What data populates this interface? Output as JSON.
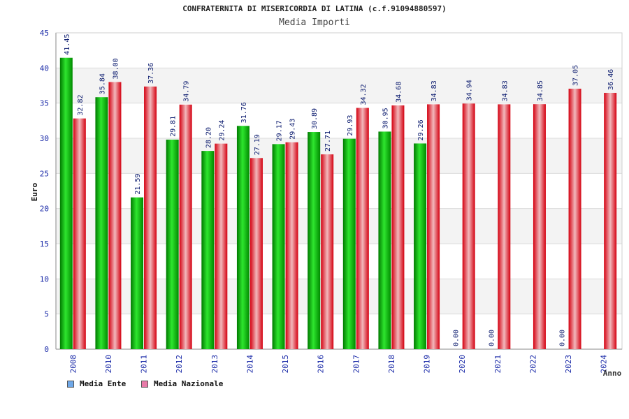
{
  "chart_data": {
    "type": "bar",
    "title": "CONFRATERNITA DI MISERICORDIA DI LATINA (c.f.91094880597)",
    "subtitle": "Media Importi",
    "xlabel": "Anno",
    "ylabel": "Euro",
    "ylim": [
      0,
      45
    ],
    "yticks": [
      0,
      5,
      10,
      15,
      20,
      25,
      30,
      35,
      40,
      45
    ],
    "categories": [
      "2008",
      "2010",
      "2011",
      "2012",
      "2013",
      "2014",
      "2015",
      "2016",
      "2017",
      "2018",
      "2019",
      "2020",
      "2021",
      "2022",
      "2023",
      "2024"
    ],
    "series": [
      {
        "name": "Media Ente",
        "color": "#00b000",
        "values": [
          41.45,
          35.84,
          21.59,
          29.81,
          28.2,
          31.76,
          29.17,
          30.89,
          29.93,
          30.95,
          29.26,
          0.0,
          0.0,
          null,
          0.0,
          null
        ],
        "labels": [
          "41.45",
          "35.84",
          "21.59",
          "29.81",
          "28.20",
          "31.76",
          "29.17",
          "30.89",
          "29.93",
          "30.95",
          "29.26",
          "0.00",
          "0.00",
          null,
          "0.00",
          null
        ]
      },
      {
        "name": "Media Nazionale",
        "color": "#e0141e",
        "values": [
          32.82,
          38.0,
          37.36,
          34.79,
          29.24,
          27.19,
          29.43,
          27.71,
          34.32,
          34.68,
          34.83,
          34.94,
          34.83,
          34.85,
          37.05,
          36.46
        ],
        "labels": [
          "32.82",
          "38.00",
          "37.36",
          "34.79",
          "29.24",
          "27.19",
          "29.43",
          "27.71",
          "34.32",
          "34.68",
          "34.83",
          "34.94",
          "34.83",
          "34.85",
          "37.05",
          "36.46"
        ]
      }
    ],
    "legend": [
      {
        "label": "Media Ente",
        "color": "#6fa8e8"
      },
      {
        "label": "Media Nazionale",
        "color": "#e87aa8"
      }
    ],
    "legend_position": "bottom-left",
    "grid": true
  }
}
